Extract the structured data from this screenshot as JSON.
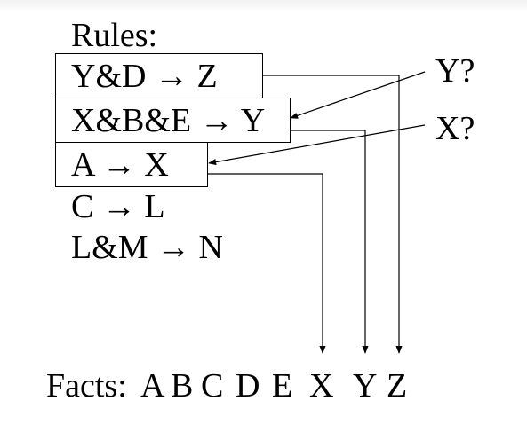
{
  "rules_heading": "Rules:",
  "rules": [
    "Y&D → Z",
    "X&B&E → Y",
    "A → X",
    "C → L",
    "L&M → N"
  ],
  "queries": [
    "Y?",
    "X?"
  ],
  "facts": {
    "label": "Facts:",
    "items": [
      "A",
      "B",
      "C",
      "D",
      "E",
      "X",
      "Y",
      "Z"
    ]
  }
}
